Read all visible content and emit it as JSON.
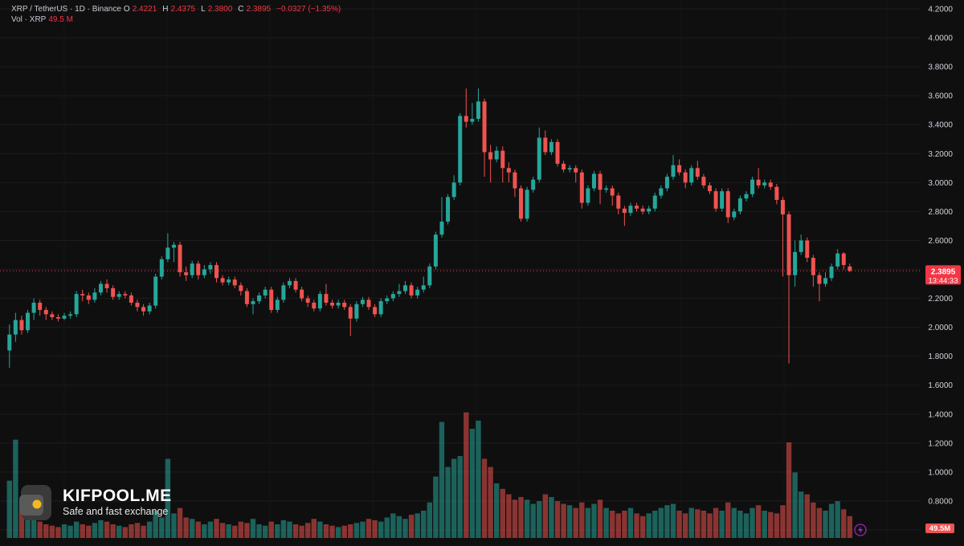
{
  "legend": {
    "symbol": "XRP / TetherUS · 1D · Binance",
    "o_key": "O",
    "o_val": "2.4221",
    "h_key": "H",
    "h_val": "2.4375",
    "l_key": "L",
    "l_val": "2.3800",
    "c_key": "C",
    "c_val": "2.3895",
    "change": "−0.0327 (−1.35%)",
    "vol_label": "Vol · XRP",
    "vol_value": "49.5 M"
  },
  "brand": {
    "name": "KIFPOOL.ME",
    "tagline": "Safe and fast exchange"
  },
  "price_badge": {
    "price": "2.3895",
    "countdown": "13:44:33",
    "value": 2.3895,
    "color": "#f23645"
  },
  "volume_badge": {
    "label": "49.5M"
  },
  "colors": {
    "up": "#26a69a",
    "down": "#ef5350",
    "background": "#0f0f0f",
    "axis_text": "#d1d4dc"
  },
  "chart_data": {
    "type": "candlestick",
    "title": "XRP / TetherUS · 1D · Binance",
    "y_axis": {
      "ticks": [
        "4.2000",
        "4.0000",
        "3.8000",
        "3.6000",
        "3.4000",
        "3.2000",
        "3.0000",
        "2.8000",
        "2.6000",
        "2.4000",
        "2.2000",
        "2.0000",
        "1.8000",
        "1.6000",
        "1.4000",
        "1.2000",
        "1.0000",
        "0.8000",
        "0.6000"
      ],
      "tick_values": [
        4.2,
        4.0,
        3.8,
        3.6,
        3.4,
        3.2,
        3.0,
        2.8,
        2.6,
        2.4,
        2.2,
        2.0,
        1.8,
        1.6,
        1.4,
        1.2,
        1.0,
        0.8,
        0.6
      ],
      "range": [
        0.6,
        4.2
      ]
    },
    "last_price": 2.3895,
    "grid": true,
    "candles": [
      [
        1.84,
        1.95,
        1.72,
        2.02
      ],
      [
        1.95,
        2.05,
        1.9,
        2.1
      ],
      [
        2.05,
        1.98,
        1.95,
        2.08
      ],
      [
        1.98,
        2.1,
        1.96,
        2.12
      ],
      [
        2.1,
        2.17,
        2.05,
        2.2
      ],
      [
        2.17,
        2.12,
        2.08,
        2.19
      ],
      [
        2.12,
        2.09,
        2.05,
        2.14
      ],
      [
        2.09,
        2.07,
        2.05,
        2.11
      ],
      [
        2.07,
        2.06,
        2.04,
        2.09
      ],
      [
        2.06,
        2.08,
        2.05,
        2.1
      ],
      [
        2.08,
        2.09,
        2.06,
        2.11
      ],
      [
        2.09,
        2.23,
        2.07,
        2.25
      ],
      [
        2.23,
        2.22,
        2.18,
        2.26
      ],
      [
        2.22,
        2.19,
        2.16,
        2.24
      ],
      [
        2.19,
        2.24,
        2.17,
        2.27
      ],
      [
        2.24,
        2.3,
        2.22,
        2.32
      ],
      [
        2.3,
        2.27,
        2.24,
        2.33
      ],
      [
        2.27,
        2.21,
        2.19,
        2.29
      ],
      [
        2.21,
        2.23,
        2.19,
        2.25
      ],
      [
        2.23,
        2.22,
        2.2,
        2.25
      ],
      [
        2.22,
        2.17,
        2.15,
        2.24
      ],
      [
        2.17,
        2.14,
        2.11,
        2.19
      ],
      [
        2.14,
        2.11,
        2.08,
        2.16
      ],
      [
        2.11,
        2.15,
        2.09,
        2.17
      ],
      [
        2.15,
        2.35,
        2.13,
        2.37
      ],
      [
        2.35,
        2.47,
        2.33,
        2.49
      ],
      [
        2.47,
        2.55,
        2.45,
        2.65
      ],
      [
        2.55,
        2.57,
        2.45,
        2.59
      ],
      [
        2.57,
        2.38,
        2.35,
        2.59
      ],
      [
        2.38,
        2.36,
        2.32,
        2.42
      ],
      [
        2.36,
        2.44,
        2.34,
        2.46
      ],
      [
        2.44,
        2.36,
        2.33,
        2.46
      ],
      [
        2.36,
        2.4,
        2.34,
        2.43
      ],
      [
        2.4,
        2.43,
        2.37,
        2.45
      ],
      [
        2.43,
        2.34,
        2.31,
        2.45
      ],
      [
        2.34,
        2.31,
        2.29,
        2.36
      ],
      [
        2.31,
        2.33,
        2.29,
        2.35
      ],
      [
        2.33,
        2.29,
        2.27,
        2.35
      ],
      [
        2.29,
        2.25,
        2.22,
        2.31
      ],
      [
        2.25,
        2.16,
        2.14,
        2.27
      ],
      [
        2.16,
        2.18,
        2.09,
        2.2
      ],
      [
        2.18,
        2.22,
        2.16,
        2.24
      ],
      [
        2.22,
        2.26,
        2.2,
        2.28
      ],
      [
        2.26,
        2.12,
        2.1,
        2.28
      ],
      [
        2.12,
        2.19,
        2.1,
        2.21
      ],
      [
        2.19,
        2.29,
        2.17,
        2.31
      ],
      [
        2.29,
        2.32,
        2.27,
        2.34
      ],
      [
        2.32,
        2.26,
        2.24,
        2.34
      ],
      [
        2.26,
        2.2,
        2.18,
        2.28
      ],
      [
        2.2,
        2.17,
        2.14,
        2.22
      ],
      [
        2.17,
        2.13,
        2.11,
        2.19
      ],
      [
        2.13,
        2.23,
        2.11,
        2.25
      ],
      [
        2.23,
        2.17,
        2.15,
        2.3
      ],
      [
        2.17,
        2.15,
        2.13,
        2.19
      ],
      [
        2.15,
        2.17,
        2.13,
        2.19
      ],
      [
        2.17,
        2.14,
        2.12,
        2.19
      ],
      [
        2.14,
        2.06,
        1.94,
        2.16
      ],
      [
        2.06,
        2.16,
        2.04,
        2.18
      ],
      [
        2.16,
        2.19,
        2.14,
        2.21
      ],
      [
        2.19,
        2.14,
        2.12,
        2.21
      ],
      [
        2.14,
        2.09,
        2.07,
        2.16
      ],
      [
        2.09,
        2.18,
        2.07,
        2.2
      ],
      [
        2.18,
        2.2,
        2.16,
        2.22
      ],
      [
        2.2,
        2.23,
        2.18,
        2.25
      ],
      [
        2.23,
        2.25,
        2.21,
        2.3
      ],
      [
        2.25,
        2.29,
        2.23,
        2.32
      ],
      [
        2.29,
        2.22,
        2.2,
        2.31
      ],
      [
        2.22,
        2.26,
        2.2,
        2.28
      ],
      [
        2.26,
        2.29,
        2.24,
        2.35
      ],
      [
        2.29,
        2.42,
        2.27,
        2.44
      ],
      [
        2.42,
        2.64,
        2.4,
        2.66
      ],
      [
        2.64,
        2.73,
        2.62,
        2.9
      ],
      [
        2.73,
        2.9,
        2.71,
        2.92
      ],
      [
        2.9,
        3.0,
        2.88,
        3.05
      ],
      [
        3.0,
        3.46,
        2.98,
        3.48
      ],
      [
        3.46,
        3.42,
        3.38,
        3.65
      ],
      [
        3.42,
        3.44,
        3.4,
        3.55
      ],
      [
        3.44,
        3.56,
        3.42,
        3.65
      ],
      [
        3.56,
        3.21,
        3.04,
        3.58
      ],
      [
        3.21,
        3.16,
        3.0,
        3.26
      ],
      [
        3.16,
        3.22,
        3.14,
        3.25
      ],
      [
        3.22,
        3.1,
        3.0,
        3.25
      ],
      [
        3.1,
        3.07,
        3.0,
        3.14
      ],
      [
        3.07,
        2.96,
        2.9,
        3.09
      ],
      [
        2.96,
        2.75,
        2.73,
        2.98
      ],
      [
        2.75,
        2.95,
        2.73,
        2.97
      ],
      [
        2.95,
        3.02,
        2.93,
        3.04
      ],
      [
        3.02,
        3.31,
        3.0,
        3.38
      ],
      [
        3.31,
        3.21,
        3.19,
        3.36
      ],
      [
        3.21,
        3.28,
        3.19,
        3.3
      ],
      [
        3.28,
        3.13,
        3.11,
        3.3
      ],
      [
        3.13,
        3.09,
        3.07,
        3.15
      ],
      [
        3.09,
        3.1,
        3.07,
        3.12
      ],
      [
        3.1,
        3.07,
        3.0,
        3.12
      ],
      [
        3.07,
        2.86,
        2.82,
        3.09
      ],
      [
        2.86,
        2.96,
        2.84,
        2.98
      ],
      [
        2.96,
        3.06,
        2.94,
        3.08
      ],
      [
        3.06,
        2.95,
        2.85,
        3.08
      ],
      [
        2.95,
        2.96,
        2.93,
        2.98
      ],
      [
        2.96,
        2.91,
        2.84,
        2.98
      ],
      [
        2.91,
        2.82,
        2.78,
        2.93
      ],
      [
        2.82,
        2.79,
        2.7,
        2.84
      ],
      [
        2.79,
        2.84,
        2.77,
        2.86
      ],
      [
        2.84,
        2.82,
        2.8,
        2.86
      ],
      [
        2.82,
        2.8,
        2.78,
        2.84
      ],
      [
        2.8,
        2.82,
        2.78,
        2.84
      ],
      [
        2.82,
        2.91,
        2.8,
        2.93
      ],
      [
        2.91,
        2.96,
        2.89,
        2.98
      ],
      [
        2.96,
        3.04,
        2.94,
        3.06
      ],
      [
        3.04,
        3.12,
        3.02,
        3.19
      ],
      [
        3.12,
        3.07,
        3.05,
        3.16
      ],
      [
        3.07,
        3.0,
        2.96,
        3.09
      ],
      [
        3.0,
        3.1,
        2.98,
        3.12
      ],
      [
        3.1,
        3.04,
        3.02,
        3.15
      ],
      [
        3.04,
        2.98,
        2.96,
        3.06
      ],
      [
        2.98,
        2.94,
        2.92,
        3.0
      ],
      [
        2.94,
        2.82,
        2.8,
        2.96
      ],
      [
        2.82,
        2.94,
        2.8,
        2.96
      ],
      [
        2.94,
        2.76,
        2.72,
        2.96
      ],
      [
        2.76,
        2.8,
        2.74,
        2.82
      ],
      [
        2.8,
        2.89,
        2.78,
        2.91
      ],
      [
        2.89,
        2.92,
        2.87,
        2.94
      ],
      [
        2.92,
        3.02,
        2.9,
        3.04
      ],
      [
        3.02,
        2.98,
        2.96,
        3.1
      ],
      [
        2.98,
        3.0,
        2.96,
        3.02
      ],
      [
        3.0,
        2.97,
        2.95,
        3.02
      ],
      [
        2.97,
        2.88,
        2.85,
        2.99
      ],
      [
        2.88,
        2.78,
        2.35,
        2.9
      ],
      [
        2.78,
        2.36,
        1.75,
        2.8
      ],
      [
        2.36,
        2.52,
        2.28,
        2.6
      ],
      [
        2.52,
        2.6,
        2.5,
        2.64
      ],
      [
        2.6,
        2.48,
        2.45,
        2.62
      ],
      [
        2.48,
        2.36,
        2.28,
        2.5
      ],
      [
        2.36,
        2.3,
        2.18,
        2.38
      ],
      [
        2.3,
        2.34,
        2.28,
        2.38
      ],
      [
        2.34,
        2.42,
        2.32,
        2.44
      ],
      [
        2.42,
        2.51,
        2.4,
        2.54
      ],
      [
        2.51,
        2.43,
        2.4,
        2.52
      ],
      [
        2.42,
        2.39,
        2.38,
        2.44
      ]
    ],
    "volumes_relative": [
      0.42,
      0.72,
      0.2,
      0.18,
      0.15,
      0.12,
      0.1,
      0.09,
      0.08,
      0.1,
      0.09,
      0.12,
      0.1,
      0.09,
      0.11,
      0.13,
      0.12,
      0.1,
      0.09,
      0.08,
      0.1,
      0.11,
      0.09,
      0.12,
      0.2,
      0.15,
      0.58,
      0.18,
      0.22,
      0.15,
      0.14,
      0.12,
      0.1,
      0.12,
      0.14,
      0.11,
      0.1,
      0.09,
      0.12,
      0.11,
      0.14,
      0.1,
      0.09,
      0.12,
      0.1,
      0.13,
      0.12,
      0.1,
      0.09,
      0.11,
      0.14,
      0.12,
      0.1,
      0.09,
      0.08,
      0.09,
      0.1,
      0.11,
      0.12,
      0.14,
      0.13,
      0.12,
      0.15,
      0.18,
      0.16,
      0.14,
      0.17,
      0.18,
      0.2,
      0.26,
      0.45,
      0.85,
      0.52,
      0.58,
      0.6,
      0.92,
      0.8,
      0.86,
      0.58,
      0.52,
      0.4,
      0.36,
      0.32,
      0.28,
      0.3,
      0.28,
      0.25,
      0.27,
      0.32,
      0.3,
      0.27,
      0.25,
      0.24,
      0.22,
      0.26,
      0.22,
      0.25,
      0.28,
      0.22,
      0.2,
      0.18,
      0.2,
      0.22,
      0.18,
      0.16,
      0.18,
      0.2,
      0.22,
      0.24,
      0.25,
      0.2,
      0.18,
      0.22,
      0.21,
      0.2,
      0.18,
      0.22,
      0.2,
      0.26,
      0.22,
      0.2,
      0.18,
      0.22,
      0.24,
      0.2,
      0.19,
      0.18,
      0.24,
      0.7,
      0.48,
      0.34,
      0.32,
      0.26,
      0.22,
      0.2,
      0.25,
      0.27,
      0.21,
      0.16
    ]
  }
}
